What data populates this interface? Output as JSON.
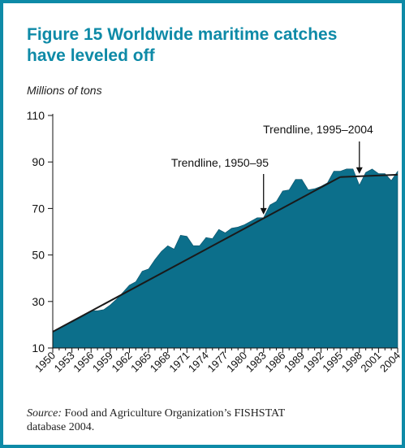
{
  "figure": {
    "title_line1": "Figure 15  Worldwide maritime catches",
    "title_line2": "have leveled off",
    "units": "Millions of tons",
    "source_label": "Source:",
    "source_text": " Food and Agriculture Organization’s FISHSTAT",
    "source_text2": "database 2004."
  },
  "colors": {
    "frame": "#0e8aa7",
    "area_fill": "#0c6f8b",
    "trend": "#1a1a1a"
  },
  "chart_data": {
    "type": "area",
    "ylabel": "Millions of tons",
    "ylim": [
      10,
      110
    ],
    "xlim": [
      1950,
      2004
    ],
    "yticks": [
      10,
      30,
      50,
      70,
      90,
      110
    ],
    "xtick_labels": [
      "1950",
      "1953",
      "1956",
      "1959",
      "1962",
      "1965",
      "1968",
      "1971",
      "1974",
      "1977",
      "1980",
      "1983",
      "1986",
      "1989",
      "1992",
      "1995",
      "1998",
      "2001",
      "2004"
    ],
    "grid": false,
    "series": [
      {
        "x": [
          1950,
          1951,
          1952,
          1953,
          1954,
          1955,
          1956,
          1957,
          1958,
          1959,
          1960,
          1961,
          1962,
          1963,
          1964,
          1965,
          1966,
          1967,
          1968,
          1969,
          1970,
          1971,
          1972,
          1973,
          1974,
          1975,
          1976,
          1977,
          1978,
          1979,
          1980,
          1981,
          1982,
          1983,
          1984,
          1985,
          1986,
          1987,
          1988,
          1989,
          1990,
          1991,
          1992,
          1993,
          1994,
          1995,
          1996,
          1997,
          1998,
          1999,
          2000,
          2001,
          2002,
          2003,
          2004
        ],
        "values": [
          17,
          18.5,
          20,
          21,
          22.5,
          24,
          26,
          26,
          26.5,
          28.5,
          31,
          34,
          37,
          38.5,
          43,
          44,
          48,
          51.5,
          54,
          52.5,
          58.5,
          58,
          54,
          54,
          57.5,
          57,
          61,
          59.5,
          61.5,
          62,
          63,
          64.5,
          66,
          66,
          71.5,
          73,
          77.5,
          78,
          82.5,
          82.5,
          78,
          78.5,
          79.5,
          81,
          86,
          86,
          87,
          87,
          80,
          85.5,
          87,
          85,
          85,
          82,
          86
        ]
      }
    ],
    "trendlines": [
      {
        "label": "Trendline, 1950–95",
        "x": [
          1950,
          1995
        ],
        "values": [
          17,
          83.5
        ]
      },
      {
        "label": "Trendline, 1995–2004",
        "x": [
          1995,
          2004
        ],
        "values": [
          83.5,
          84.5
        ]
      }
    ],
    "annotations": [
      {
        "text": "Trendline, 1950–95",
        "arrow_at": [
          1983,
          66
        ]
      },
      {
        "text": "Trendline, 1995–2004",
        "arrow_at": [
          1998,
          83.5
        ]
      }
    ]
  }
}
